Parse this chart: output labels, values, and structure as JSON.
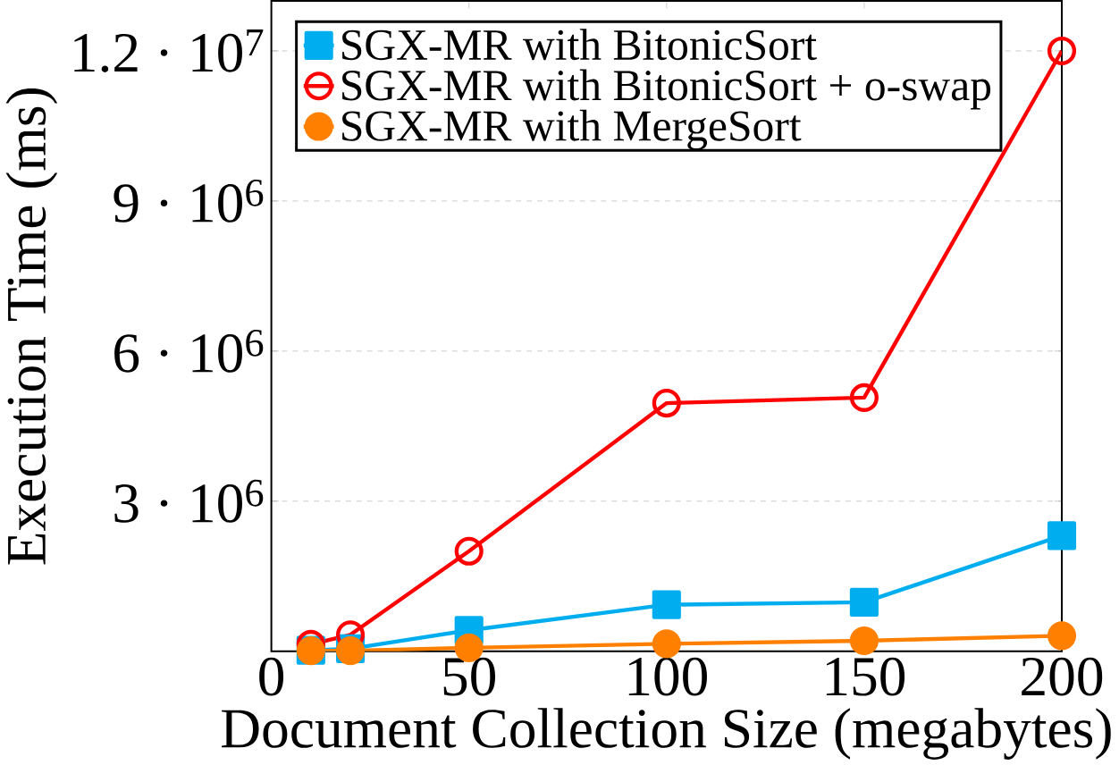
{
  "chart_data": {
    "type": "line",
    "xlabel": "Document Collection Size (megabytes)",
    "ylabel": "Execution Time (ms)",
    "x": [
      10,
      20,
      50,
      100,
      150,
      200
    ],
    "series": [
      {
        "name": "SGX-MR with BitonicSort",
        "color": "#00aeef",
        "marker": "square",
        "values": [
          20000,
          50000,
          420000,
          930000,
          980000,
          2310000
        ]
      },
      {
        "name": "SGX-MR with BitonicSort + o-swap",
        "color": "#ff0000",
        "marker": "circle",
        "values": [
          140000,
          330000,
          2000000,
          4960000,
          5070000,
          12000000
        ]
      },
      {
        "name": "SGX-MR with MergeSort",
        "color": "#ff8000",
        "marker": "circle",
        "values": [
          10000,
          10000,
          70000,
          150000,
          210000,
          310000
        ]
      }
    ],
    "xlim": [
      0,
      200
    ],
    "ylim": [
      0,
      13000000
    ],
    "xticks": [
      0,
      50,
      100,
      150,
      200
    ],
    "yticks": [
      {
        "value": 3000000,
        "label": "3 · 10$^{6}$"
      },
      {
        "value": 6000000,
        "label": "6 · 10$^{6}$"
      },
      {
        "value": 9000000,
        "label": "9 · 10$^{6}$"
      },
      {
        "value": 12000000,
        "label": "1.2 · 10$^{7}$"
      }
    ],
    "grid": "y",
    "legend": "top left",
    "line_style": "solid"
  }
}
